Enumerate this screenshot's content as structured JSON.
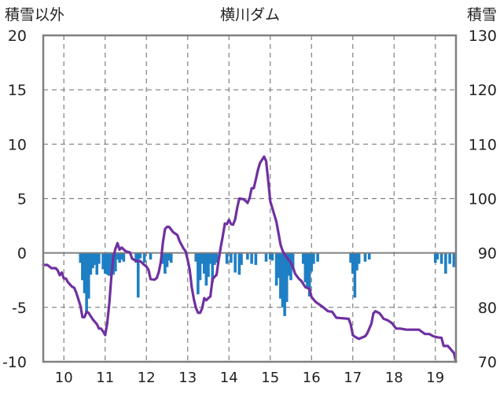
{
  "chart_data": {
    "type": "bar+line",
    "title": "横川ダム",
    "y_left_label": "積雪以外",
    "y_right_label": "積雪",
    "y_left_range": [
      -10,
      20
    ],
    "y_left_ticks": [
      "20",
      "15",
      "10",
      "5",
      "0",
      "-5",
      "-10"
    ],
    "y_right_range": [
      70,
      130
    ],
    "y_right_ticks": [
      "130",
      "120",
      "110",
      "100",
      "90",
      "80",
      "70"
    ],
    "x_range": [
      9.5,
      19.5
    ],
    "x_ticks": [
      "10",
      "11",
      "12",
      "13",
      "14",
      "15",
      "16",
      "17",
      "18",
      "19"
    ],
    "grid": true,
    "colors": {
      "bars": "#1f7fc4",
      "line": "#7030a0",
      "frame": "#808080",
      "grid": "#7f7f7f"
    },
    "series": [
      {
        "name": "積雪以外",
        "type": "bar",
        "axis": "left",
        "points": [
          [
            10.4,
            -0.9
          ],
          [
            10.45,
            -2.5
          ],
          [
            10.5,
            -3.7
          ],
          [
            10.55,
            -5.5
          ],
          [
            10.6,
            -4.2
          ],
          [
            10.65,
            -2.0
          ],
          [
            10.7,
            -1.4
          ],
          [
            10.75,
            -1.1
          ],
          [
            10.8,
            -2.0
          ],
          [
            10.85,
            -1.0
          ],
          [
            10.95,
            -1.5
          ],
          [
            11.0,
            -1.9
          ],
          [
            11.05,
            -2.0
          ],
          [
            11.1,
            -2.1
          ],
          [
            11.15,
            -1.9
          ],
          [
            11.2,
            -2.0
          ],
          [
            11.25,
            -1.7
          ],
          [
            11.3,
            -0.6
          ],
          [
            11.35,
            -0.9
          ],
          [
            11.4,
            -0.6
          ],
          [
            11.45,
            -0.8
          ],
          [
            11.75,
            -0.9
          ],
          [
            11.8,
            -4.1
          ],
          [
            11.85,
            -0.5
          ],
          [
            11.95,
            -0.9
          ],
          [
            12.1,
            -0.6
          ],
          [
            12.4,
            -1.0
          ],
          [
            12.45,
            -1.9
          ],
          [
            12.5,
            -1.3
          ],
          [
            12.55,
            -0.7
          ],
          [
            12.6,
            -0.9
          ],
          [
            13.2,
            -0.8
          ],
          [
            13.25,
            -3.8
          ],
          [
            13.3,
            -2.5
          ],
          [
            13.35,
            -1.0
          ],
          [
            13.4,
            -1.9
          ],
          [
            13.45,
            -3.0
          ],
          [
            13.5,
            -2.2
          ],
          [
            13.55,
            -1.0
          ],
          [
            13.6,
            -2.7
          ],
          [
            13.65,
            -1.1
          ],
          [
            13.7,
            -0.9
          ],
          [
            13.95,
            -1.0
          ],
          [
            14.05,
            -0.9
          ],
          [
            14.15,
            -1.8
          ],
          [
            14.25,
            -2.0
          ],
          [
            14.3,
            -1.1
          ],
          [
            14.45,
            -0.6
          ],
          [
            14.55,
            -1.0
          ],
          [
            14.65,
            -1.1
          ],
          [
            14.9,
            -0.8
          ],
          [
            15.0,
            -0.6
          ],
          [
            15.05,
            -0.7
          ],
          [
            15.15,
            -3.0
          ],
          [
            15.2,
            -2.3
          ],
          [
            15.25,
            -4.2
          ],
          [
            15.3,
            -5.0
          ],
          [
            15.35,
            -5.8
          ],
          [
            15.4,
            -4.5
          ],
          [
            15.45,
            -2.1
          ],
          [
            15.5,
            -2.5
          ],
          [
            15.55,
            -1.4
          ],
          [
            15.8,
            -1.0
          ],
          [
            15.85,
            -2.7
          ],
          [
            15.9,
            -3.1
          ],
          [
            15.95,
            -4.0
          ],
          [
            16.0,
            -1.7
          ],
          [
            16.05,
            -1.0
          ],
          [
            16.15,
            -0.8
          ],
          [
            16.95,
            -0.9
          ],
          [
            17.0,
            -1.9
          ],
          [
            17.05,
            -4.1
          ],
          [
            17.1,
            -1.6
          ],
          [
            17.15,
            -1.0
          ],
          [
            17.3,
            -0.8
          ],
          [
            17.4,
            -0.6
          ],
          [
            19.0,
            -0.9
          ],
          [
            19.05,
            -0.6
          ],
          [
            19.15,
            -1.0
          ],
          [
            19.25,
            -1.9
          ],
          [
            19.35,
            -1.0
          ],
          [
            19.45,
            -1.3
          ]
        ]
      },
      {
        "name": "積雪",
        "type": "line",
        "axis": "right",
        "points": [
          [
            9.5,
            87.8
          ],
          [
            9.6,
            87.8
          ],
          [
            9.7,
            87.2
          ],
          [
            9.8,
            87.2
          ],
          [
            9.85,
            86.8
          ],
          [
            9.9,
            85.9
          ],
          [
            9.95,
            86.4
          ],
          [
            10.0,
            85.3
          ],
          [
            10.05,
            85.3
          ],
          [
            10.1,
            84.6
          ],
          [
            10.2,
            83.8
          ],
          [
            10.25,
            83.6
          ],
          [
            10.3,
            82.7
          ],
          [
            10.4,
            80.3
          ],
          [
            10.45,
            78.2
          ],
          [
            10.5,
            78.2
          ],
          [
            10.55,
            79.2
          ],
          [
            10.6,
            79.0
          ],
          [
            10.7,
            77.8
          ],
          [
            10.8,
            76.9
          ],
          [
            10.85,
            76.1
          ],
          [
            10.9,
            76.1
          ],
          [
            10.95,
            75.6
          ],
          [
            11.0,
            74.9
          ],
          [
            11.05,
            77.1
          ],
          [
            11.1,
            80.7
          ],
          [
            11.15,
            85.5
          ],
          [
            11.2,
            89.3
          ],
          [
            11.25,
            90.8
          ],
          [
            11.3,
            91.8
          ],
          [
            11.35,
            90.6
          ],
          [
            11.4,
            91.0
          ],
          [
            11.5,
            90.3
          ],
          [
            11.6,
            90.1
          ],
          [
            11.65,
            89.0
          ],
          [
            11.75,
            88.5
          ],
          [
            11.85,
            88.5
          ],
          [
            11.95,
            87.8
          ],
          [
            12.0,
            87.5
          ],
          [
            12.05,
            86.9
          ],
          [
            12.1,
            85.2
          ],
          [
            12.2,
            85.1
          ],
          [
            12.25,
            85.4
          ],
          [
            12.3,
            86.5
          ],
          [
            12.35,
            88.4
          ],
          [
            12.4,
            92.0
          ],
          [
            12.45,
            94.4
          ],
          [
            12.5,
            94.8
          ],
          [
            12.55,
            94.8
          ],
          [
            12.65,
            93.8
          ],
          [
            12.75,
            93.3
          ],
          [
            12.8,
            92.2
          ],
          [
            12.9,
            90.8
          ],
          [
            12.95,
            90.3
          ],
          [
            13.0,
            88.7
          ],
          [
            13.05,
            86.8
          ],
          [
            13.1,
            83.6
          ],
          [
            13.15,
            81.5
          ],
          [
            13.2,
            79.9
          ],
          [
            13.25,
            79.0
          ],
          [
            13.3,
            79.0
          ],
          [
            13.35,
            79.8
          ],
          [
            13.4,
            81.7
          ],
          [
            13.45,
            81.3
          ],
          [
            13.5,
            81.7
          ],
          [
            13.55,
            82.0
          ],
          [
            13.6,
            85.2
          ],
          [
            13.7,
            86.0
          ],
          [
            13.75,
            88.7
          ],
          [
            13.8,
            91.1
          ],
          [
            13.85,
            93.1
          ],
          [
            13.9,
            95.4
          ],
          [
            13.95,
            95.3
          ],
          [
            14.0,
            96.1
          ],
          [
            14.05,
            95.3
          ],
          [
            14.1,
            95.2
          ],
          [
            14.15,
            96.2
          ],
          [
            14.2,
            98.3
          ],
          [
            14.25,
            100.0
          ],
          [
            14.35,
            99.9
          ],
          [
            14.4,
            99.6
          ],
          [
            14.45,
            99.2
          ],
          [
            14.5,
            100.1
          ],
          [
            14.55,
            101.9
          ],
          [
            14.6,
            101.9
          ],
          [
            14.65,
            103.5
          ],
          [
            14.7,
            105.2
          ],
          [
            14.75,
            106.5
          ],
          [
            14.85,
            107.7
          ],
          [
            14.9,
            106.9
          ],
          [
            14.95,
            103.4
          ],
          [
            15.0,
            99.5
          ],
          [
            15.1,
            97.0
          ],
          [
            15.15,
            95.7
          ],
          [
            15.2,
            93.6
          ],
          [
            15.25,
            91.5
          ],
          [
            15.3,
            90.4
          ],
          [
            15.35,
            89.7
          ],
          [
            15.4,
            89.2
          ],
          [
            15.5,
            88.2
          ],
          [
            15.55,
            87.4
          ],
          [
            15.6,
            86.2
          ],
          [
            15.7,
            85.2
          ],
          [
            15.75,
            84.9
          ],
          [
            15.85,
            83.7
          ],
          [
            15.95,
            83.4
          ],
          [
            16.0,
            81.9
          ],
          [
            16.1,
            81.0
          ],
          [
            16.25,
            80.2
          ],
          [
            16.35,
            79.6
          ],
          [
            16.4,
            79.3
          ],
          [
            16.5,
            79.2
          ],
          [
            16.6,
            78.1
          ],
          [
            16.75,
            78.0
          ],
          [
            16.9,
            77.9
          ],
          [
            16.95,
            76.9
          ],
          [
            17.0,
            74.9
          ],
          [
            17.05,
            74.6
          ],
          [
            17.15,
            74.2
          ],
          [
            17.3,
            74.7
          ],
          [
            17.35,
            75.2
          ],
          [
            17.45,
            77.0
          ],
          [
            17.5,
            78.9
          ],
          [
            17.55,
            79.3
          ],
          [
            17.65,
            78.9
          ],
          [
            17.75,
            77.9
          ],
          [
            17.85,
            77.6
          ],
          [
            17.95,
            77.1
          ],
          [
            18.05,
            76.1
          ],
          [
            18.15,
            76.1
          ],
          [
            18.3,
            75.9
          ],
          [
            18.4,
            75.9
          ],
          [
            18.5,
            75.9
          ],
          [
            18.6,
            75.9
          ],
          [
            18.75,
            75.1
          ],
          [
            18.85,
            75.1
          ],
          [
            18.95,
            74.7
          ],
          [
            19.05,
            74.5
          ],
          [
            19.15,
            74.4
          ],
          [
            19.2,
            72.9
          ],
          [
            19.3,
            72.9
          ],
          [
            19.35,
            72.5
          ],
          [
            19.45,
            71.6
          ],
          [
            19.5,
            70.0
          ]
        ]
      }
    ]
  }
}
